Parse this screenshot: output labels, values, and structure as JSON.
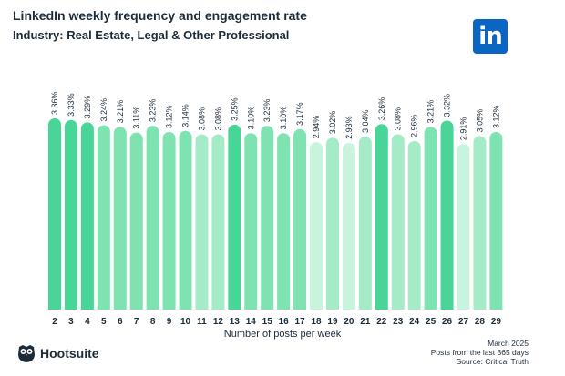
{
  "chart_data": {
    "type": "bar",
    "title": "LinkedIn weekly frequency and engagement rate",
    "subtitle": "Industry: Real Estate, Legal & Other Professional",
    "xlabel": "Number of posts per week",
    "ylabel": "",
    "categories": [
      "2",
      "3",
      "4",
      "5",
      "6",
      "7",
      "8",
      "9",
      "10",
      "11",
      "12",
      "13",
      "14",
      "15",
      "16",
      "17",
      "18",
      "19",
      "20",
      "21",
      "22",
      "23",
      "24",
      "25",
      "26",
      "27",
      "28",
      "29"
    ],
    "values": [
      3.36,
      3.33,
      3.29,
      3.24,
      3.21,
      3.11,
      3.23,
      3.12,
      3.14,
      3.08,
      3.08,
      3.25,
      3.1,
      3.23,
      3.1,
      3.17,
      2.94,
      3.02,
      2.93,
      3.04,
      3.26,
      3.08,
      2.96,
      3.21,
      3.32,
      2.91,
      3.05,
      3.12
    ],
    "value_labels": [
      "3.36%",
      "3.33%",
      "3.29%",
      "3.24%",
      "3.21%",
      "3.11%",
      "3.23%",
      "3.12%",
      "3.14%",
      "3.08%",
      "3.08%",
      "3.25%",
      "3.10%",
      "3.23%",
      "3.10%",
      "3.17%",
      "2.94%",
      "3.02%",
      "2.93%",
      "3.04%",
      "3.26%",
      "3.08%",
      "2.96%",
      "3.21%",
      "3.32%",
      "2.91%",
      "3.05%",
      "3.12%"
    ],
    "ylim": [
      0,
      3.36
    ],
    "colors": {
      "high": "#48d597",
      "mid": "#7ee2b1",
      "low": "#a5ebc7",
      "lowest": "#c8f3dc",
      "label": "#1c2b39"
    }
  },
  "logo": {
    "name": "linkedin-logo",
    "text": "in"
  },
  "footer": {
    "brand": "Hootsuite",
    "date": "March 2025",
    "period": "Posts from the last 365 days",
    "source": "Source: Critical Truth"
  }
}
